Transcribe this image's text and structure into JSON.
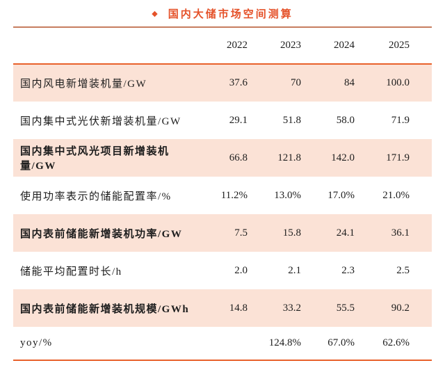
{
  "figure": {
    "bullet_icon": "◆",
    "title": "国内大储市场空间测算"
  },
  "colors": {
    "title_text": "#E5522A",
    "title_underline": "#C67D5F",
    "table_rule": "#E8602A",
    "row_highlight": "#FBE2D6",
    "body_text": "#1D1D1D"
  },
  "chart_data": {
    "type": "table",
    "title": "国内大储市场空间测算",
    "columns": [
      "",
      "2022",
      "2023",
      "2024",
      "2025"
    ],
    "rows": [
      {
        "label": "国内风电新增装机量/GW",
        "emphasis": false,
        "values": [
          "37.6",
          "70",
          "84",
          "100.0"
        ]
      },
      {
        "label": "国内集中式光伏新增装机量/GW",
        "emphasis": false,
        "values": [
          "29.1",
          "51.8",
          "58.0",
          "71.9"
        ]
      },
      {
        "label": "国内集中式风光项目新增装机量/GW",
        "emphasis": true,
        "values": [
          "66.8",
          "121.8",
          "142.0",
          "171.9"
        ]
      },
      {
        "label": "使用功率表示的储能配置率/%",
        "emphasis": false,
        "values": [
          "11.2%",
          "13.0%",
          "17.0%",
          "21.0%"
        ]
      },
      {
        "label": "国内表前储能新增装机功率/GW",
        "emphasis": true,
        "values": [
          "7.5",
          "15.8",
          "24.1",
          "36.1"
        ]
      },
      {
        "label": "储能平均配置时长/h",
        "emphasis": false,
        "values": [
          "2.0",
          "2.1",
          "2.3",
          "2.5"
        ]
      },
      {
        "label": "国内表前储能新增装机规模/GWh",
        "emphasis": true,
        "values": [
          "14.8",
          "33.2",
          "55.5",
          "90.2"
        ]
      },
      {
        "label": "yoy/%",
        "emphasis": false,
        "values": [
          "",
          "124.8%",
          "67.0%",
          "62.6%"
        ]
      }
    ]
  }
}
